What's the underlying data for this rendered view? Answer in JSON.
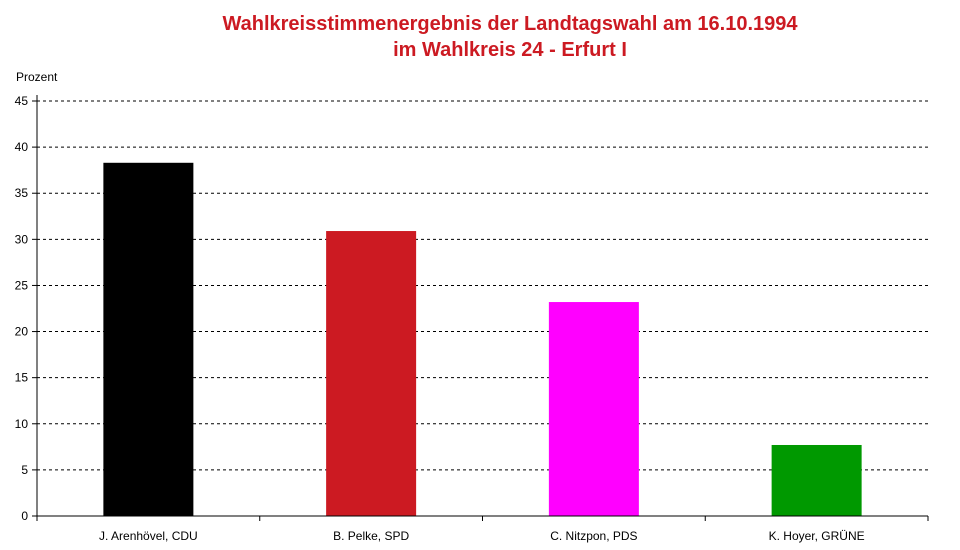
{
  "chart_data": {
    "type": "bar",
    "title": "Wahlkreisstimmenergebnis der Landtagswahl am 16.10.1994",
    "subtitle": "im Wahlkreis 24 - Erfurt I",
    "xlabel": "",
    "ylabel": "Prozent",
    "ylim": [
      0,
      45
    ],
    "yticks": [
      0,
      5,
      10,
      15,
      20,
      25,
      30,
      35,
      40,
      45
    ],
    "grid": true,
    "categories": [
      "J. Arenhövel, CDU",
      "B. Pelke, SPD",
      "C. Nitzpon, PDS",
      "K. Hoyer, GRÜNE"
    ],
    "values": [
      38.3,
      30.9,
      23.2,
      7.7
    ],
    "colors": [
      "#000000",
      "#cc1a22",
      "#ff00ff",
      "#009900"
    ]
  },
  "title_color": "#cc1a22"
}
